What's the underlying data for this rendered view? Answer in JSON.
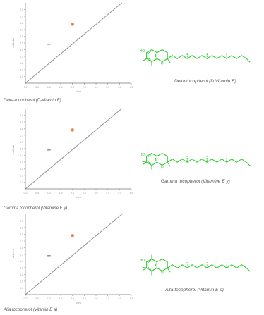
{
  "chart_data": [
    {
      "type": "line",
      "xlabel": "t/cm",
      "ylabel": "mL/min",
      "xlim": [
        0,
        4.5
      ],
      "ylim": [
        0.9,
        2.1
      ],
      "x_ticks": [
        "0.0",
        "0.5",
        "1.0",
        "1.5",
        "2.0",
        "2.5",
        "3.0",
        "3.5",
        "4.0",
        "4.5"
      ],
      "y_ticks": [
        "1.0",
        "1.1",
        "1.2",
        "1.3",
        "1.4",
        "1.5",
        "1.6",
        "1.7",
        "1.8",
        "1.9",
        "2.0"
      ],
      "line_color": "#999999",
      "marker_color": "#f08050",
      "series": [
        {
          "x": [
            0,
            4.1
          ],
          "y": [
            0.9,
            2.1
          ]
        },
        {
          "x": [
            1.0
          ],
          "y": [
            1.48
          ],
          "marker": "cross"
        },
        {
          "x": [
            2.0
          ],
          "y": [
            1.78
          ],
          "marker": "dot"
        }
      ],
      "caption": "Delta-tocopherol (D-Vitamin E)",
      "structure_name": "Delta tocopherol (D Vitamin E)"
    },
    {
      "type": "line",
      "xlabel": "t/cm",
      "ylabel": "mL/min",
      "xlim": [
        0,
        4.5
      ],
      "ylim": [
        0.9,
        2.1
      ],
      "x_ticks": [
        "0.0",
        "0.5",
        "1.0",
        "1.5",
        "2.0",
        "2.5",
        "3.0",
        "3.5",
        "4.0",
        "4.5"
      ],
      "y_ticks": [
        "1.0",
        "1.1",
        "1.2",
        "1.3",
        "1.4",
        "1.5",
        "1.6",
        "1.7",
        "1.8",
        "1.9",
        "2.0"
      ],
      "line_color": "#999999",
      "marker_color": "#f08050",
      "series": [
        {
          "x": [
            0,
            4.1
          ],
          "y": [
            0.9,
            2.1
          ]
        },
        {
          "x": [
            1.0
          ],
          "y": [
            1.48
          ],
          "marker": "cross"
        },
        {
          "x": [
            2.0
          ],
          "y": [
            1.78
          ],
          "marker": "dot"
        }
      ],
      "caption": "Gamma tocopherol (Vitamine E y)",
      "structure_name": "Gamma tocopherol (Vitamine E y)"
    },
    {
      "type": "line",
      "xlabel": "t/cm",
      "ylabel": "mL/min",
      "xlim": [
        0,
        4.5
      ],
      "ylim": [
        0.9,
        2.1
      ],
      "x_ticks": [
        "0.0",
        "0.5",
        "1.0",
        "1.5",
        "2.0",
        "2.5",
        "3.0",
        "3.5",
        "4.0",
        "4.5"
      ],
      "y_ticks": [
        "1.0",
        "1.1",
        "1.2",
        "1.3",
        "1.4",
        "1.5",
        "1.6",
        "1.7",
        "1.8",
        "1.9",
        "2.0"
      ],
      "line_color": "#999999",
      "marker_color": "#f08050",
      "series": [
        {
          "x": [
            0,
            4.1
          ],
          "y": [
            0.9,
            2.1
          ]
        },
        {
          "x": [
            1.0
          ],
          "y": [
            1.48
          ],
          "marker": "cross"
        },
        {
          "x": [
            2.0
          ],
          "y": [
            1.78
          ],
          "marker": "dot"
        }
      ],
      "caption": "Alfa tocopherol (Vitamin E a)",
      "structure_name": "Alfa-tocopherol (Vitamin E a)"
    }
  ],
  "colors": {
    "structure": "#33cc33",
    "axis": "#777777"
  },
  "structure_labels": {
    "ho": "HO",
    "ring_o": "O"
  }
}
